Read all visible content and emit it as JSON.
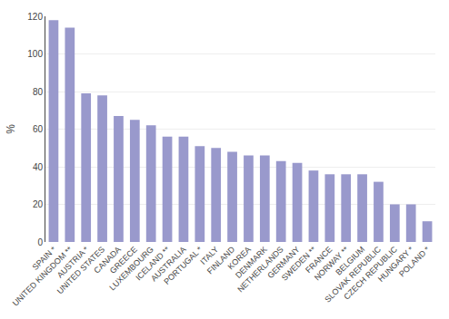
{
  "chart_data": {
    "type": "bar",
    "categories": [
      "SPAIN *",
      "UNITED KINGDOM **",
      "AUSTRIA *",
      "UNITED STATES",
      "CANADA",
      "GREECE",
      "LUXEMBOURG",
      "ICELAND **",
      "AUSTRALIA",
      "PORTUGAL *",
      "ITALY",
      "FINLAND",
      "KOREA",
      "DENMARK",
      "NETHERLANDS",
      "GERMANY",
      "SWEDEN **",
      "FRANCE",
      "NORWAY **",
      "BELGIUM",
      "SLOVAK REPUBLIC",
      "CZECH REPUBLIC",
      "HUNGARY *",
      "POLAND *"
    ],
    "values": [
      118,
      114,
      79,
      78,
      67,
      65,
      62,
      56,
      56,
      51,
      50,
      48,
      46,
      46,
      43,
      42,
      38,
      36,
      36,
      36,
      32,
      20,
      20,
      11
    ],
    "color": "#9999cc",
    "ylabel": "%",
    "ylim": [
      0,
      120
    ],
    "yticks": [
      0,
      20,
      40,
      60,
      80,
      100,
      120
    ],
    "grid": true
  }
}
